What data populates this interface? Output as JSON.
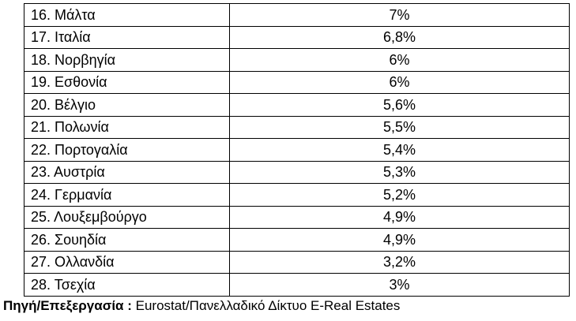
{
  "table": {
    "rows": [
      {
        "country": "16. Μάλτα",
        "value": "7%"
      },
      {
        "country": "17. Ιταλία",
        "value": "6,8%"
      },
      {
        "country": "18. Νορβηγία",
        "value": "6%"
      },
      {
        "country": "19. Εσθονία",
        "value": "6%"
      },
      {
        "country": "20. Βέλγιο",
        "value": "5,6%"
      },
      {
        "country": "21. Πολωνία",
        "value": "5,5%"
      },
      {
        "country": "22. Πορτογαλία",
        "value": "5,4%"
      },
      {
        "country": "23. Αυστρία",
        "value": "5,3%"
      },
      {
        "country": "24. Γερμανία",
        "value": "5,2%"
      },
      {
        "country": "25. Λουξεμβούργο",
        "value": "4,9%"
      },
      {
        "country": "26. Σουηδία",
        "value": "4,9%"
      },
      {
        "country": "27. Ολλανδία",
        "value": "3,2%"
      },
      {
        "country": "28. Τσεχία",
        "value": "3%"
      }
    ]
  },
  "source": {
    "label": "Πηγή/Επεξεργασία :",
    "text": " Eurostat/Πανελλαδικό Δίκτυο E-Real Estates"
  }
}
